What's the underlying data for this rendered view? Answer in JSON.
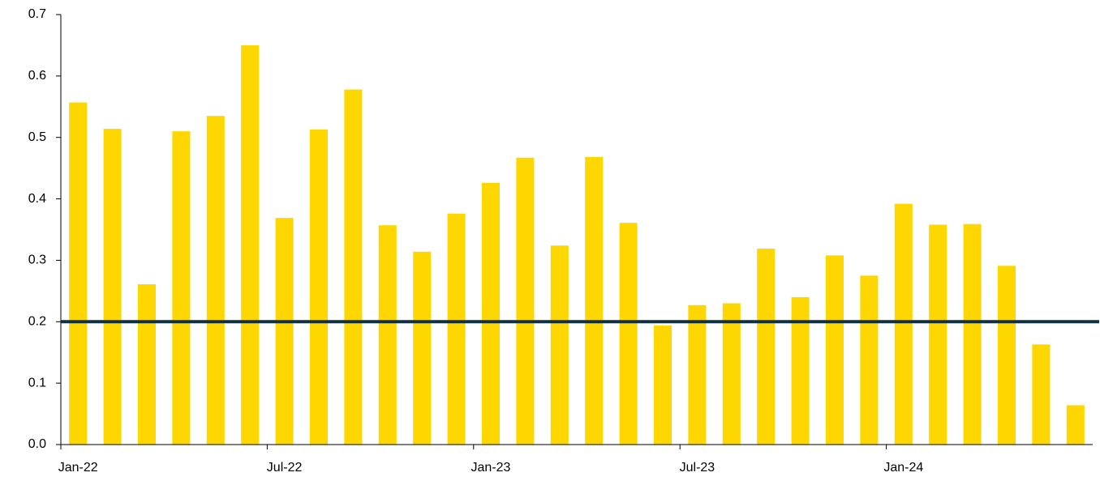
{
  "chart_data": {
    "type": "bar",
    "categories": [
      "Jan-22",
      null,
      null,
      null,
      null,
      null,
      "Jul-22",
      null,
      null,
      null,
      null,
      null,
      "Jan-23",
      null,
      null,
      null,
      null,
      null,
      "Jul-23",
      null,
      null,
      null,
      null,
      null,
      "Jan-24",
      null,
      null,
      null,
      null,
      null
    ],
    "values": [
      0.557,
      0.514,
      0.261,
      0.51,
      0.535,
      0.65,
      0.369,
      0.513,
      0.578,
      0.357,
      0.314,
      0.376,
      0.426,
      0.467,
      0.324,
      0.468,
      0.361,
      0.194,
      0.227,
      0.23,
      0.319,
      0.24,
      0.308,
      0.275,
      0.392,
      0.358,
      0.359,
      0.291,
      0.163,
      0.064
    ],
    "color": "#ffd700",
    "ylim": [
      0,
      0.7
    ],
    "yticks": [
      {
        "value": 0,
        "label": "0.0"
      },
      0.1,
      0.2,
      0.3,
      0.4,
      0.5,
      0.6,
      0.7
    ],
    "reference_line": 0.2,
    "reference_color": "#0f3040"
  }
}
